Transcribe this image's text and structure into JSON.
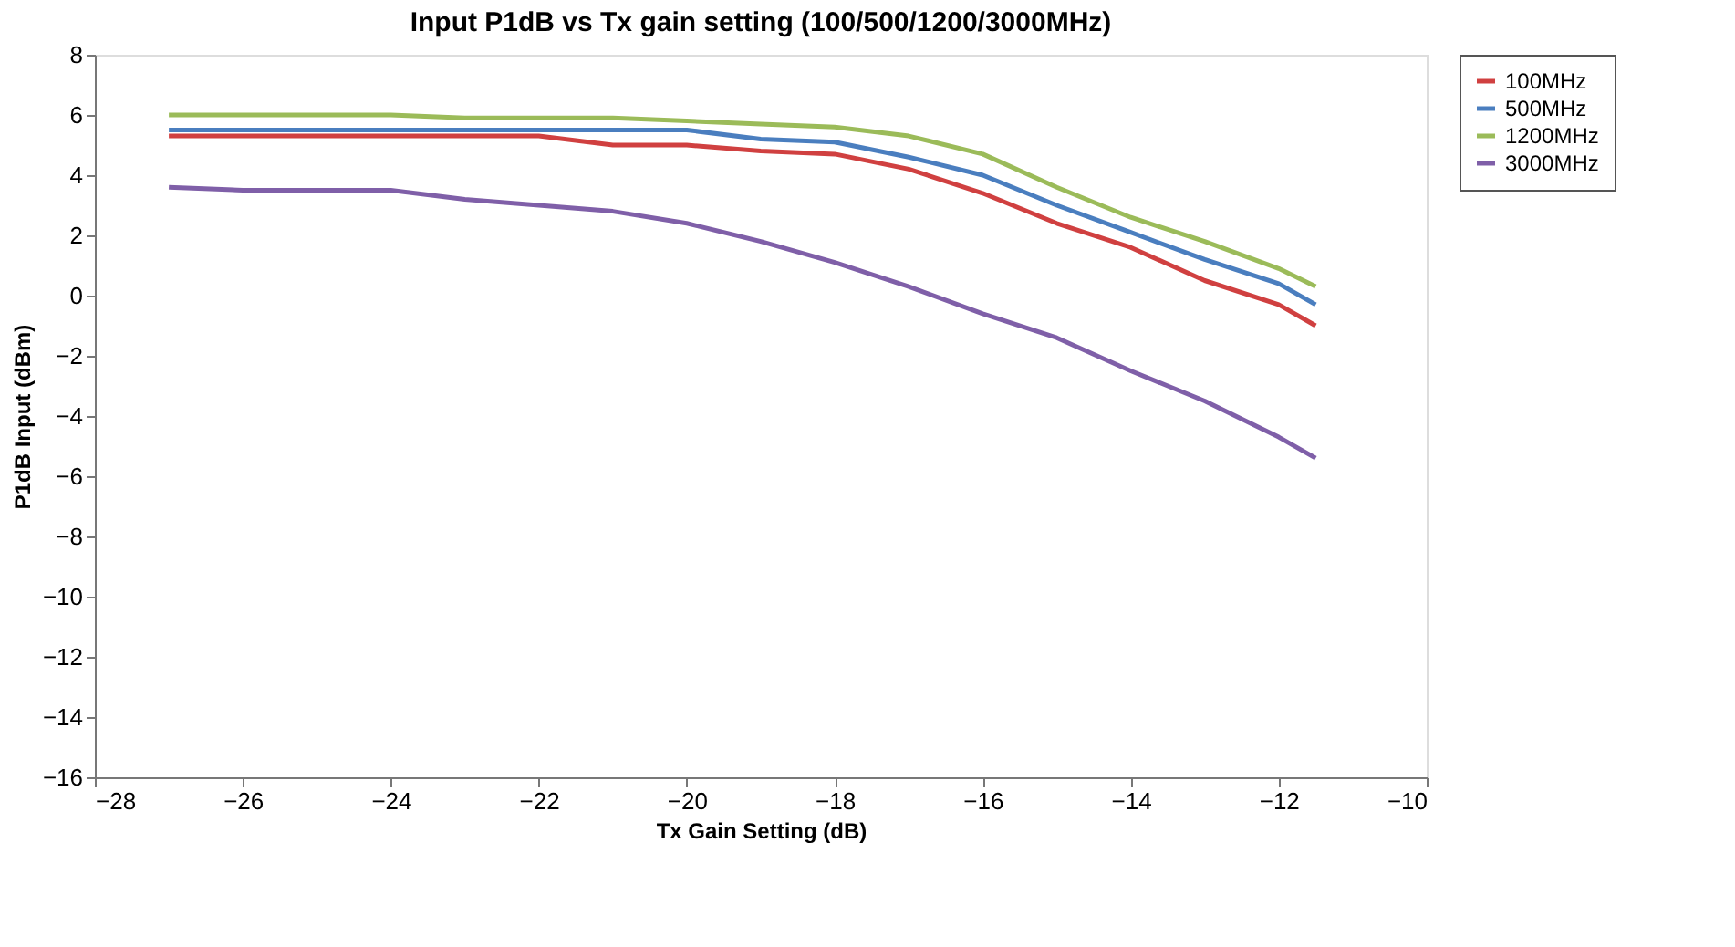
{
  "chart_data": {
    "type": "line",
    "title": "Input  P1dB vs Tx gain setting (100/500/1200/3000MHz)",
    "xlabel": "Tx Gain Setting (dB)",
    "ylabel": "P1dB Input (dBm)",
    "x": [
      -27,
      -26,
      -24,
      -23,
      -22,
      -21,
      -20,
      -19,
      -18,
      -17,
      -16,
      -15,
      -14,
      -13,
      -12,
      -11.5
    ],
    "series": [
      {
        "name": "100MHz",
        "color": "#d04040",
        "values": [
          5.3,
          5.3,
          5.3,
          5.3,
          5.3,
          5.0,
          5.0,
          4.8,
          4.7,
          4.2,
          3.4,
          2.4,
          1.6,
          0.5,
          -0.3,
          -1.0
        ]
      },
      {
        "name": "500MHz",
        "color": "#4a7ebf",
        "values": [
          5.5,
          5.5,
          5.5,
          5.5,
          5.5,
          5.5,
          5.5,
          5.2,
          5.1,
          4.6,
          4.0,
          3.0,
          2.1,
          1.2,
          0.4,
          -0.3
        ]
      },
      {
        "name": "1200MHz",
        "color": "#9bbb59",
        "values": [
          6.0,
          6.0,
          6.0,
          5.9,
          5.9,
          5.9,
          5.8,
          5.7,
          5.6,
          5.3,
          4.7,
          3.6,
          2.6,
          1.8,
          0.9,
          0.3
        ]
      },
      {
        "name": "3000MHz",
        "color": "#7f5fa8",
        "values": [
          3.6,
          3.5,
          3.5,
          3.2,
          3.0,
          2.8,
          2.4,
          1.8,
          1.1,
          0.3,
          -0.6,
          -1.4,
          -2.5,
          -3.5,
          -4.7,
          -5.4
        ]
      }
    ],
    "xlim": [
      -28,
      -10
    ],
    "xticks": [
      -28,
      -26,
      -24,
      -22,
      -20,
      -18,
      -16,
      -14,
      -12,
      -10
    ],
    "ylim": [
      -16,
      8
    ],
    "yticks": [
      -16,
      -14,
      -12,
      -10,
      -8,
      -6,
      -4,
      -2,
      0,
      2,
      4,
      6,
      8
    ],
    "grid": false,
    "legend": "right",
    "marker": "none",
    "line_style": "solid"
  }
}
